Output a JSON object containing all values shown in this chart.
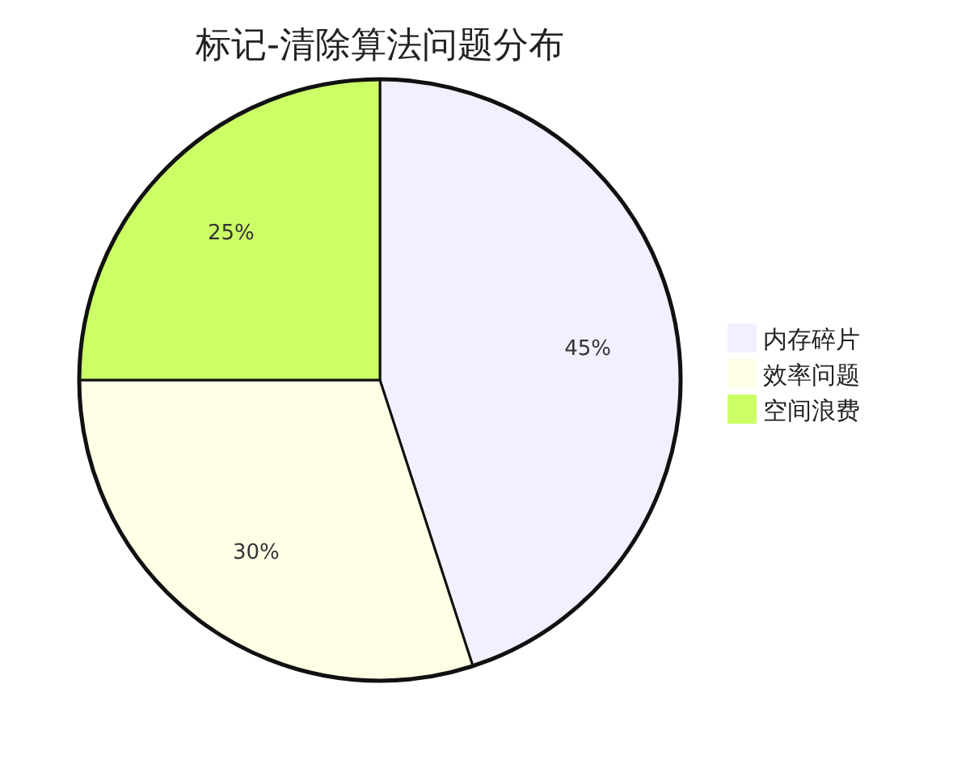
{
  "chart_data": {
    "type": "pie",
    "title": "标记-清除算法问题分布",
    "categories": [
      "内存碎片",
      "效率问题",
      "空间浪费"
    ],
    "values": [
      45,
      30,
      25
    ],
    "colors": [
      "#f0f0ff",
      "#ffffe6",
      "#ccff66"
    ],
    "value_labels": [
      "45%",
      "30%",
      "25%"
    ],
    "legend": "right"
  }
}
